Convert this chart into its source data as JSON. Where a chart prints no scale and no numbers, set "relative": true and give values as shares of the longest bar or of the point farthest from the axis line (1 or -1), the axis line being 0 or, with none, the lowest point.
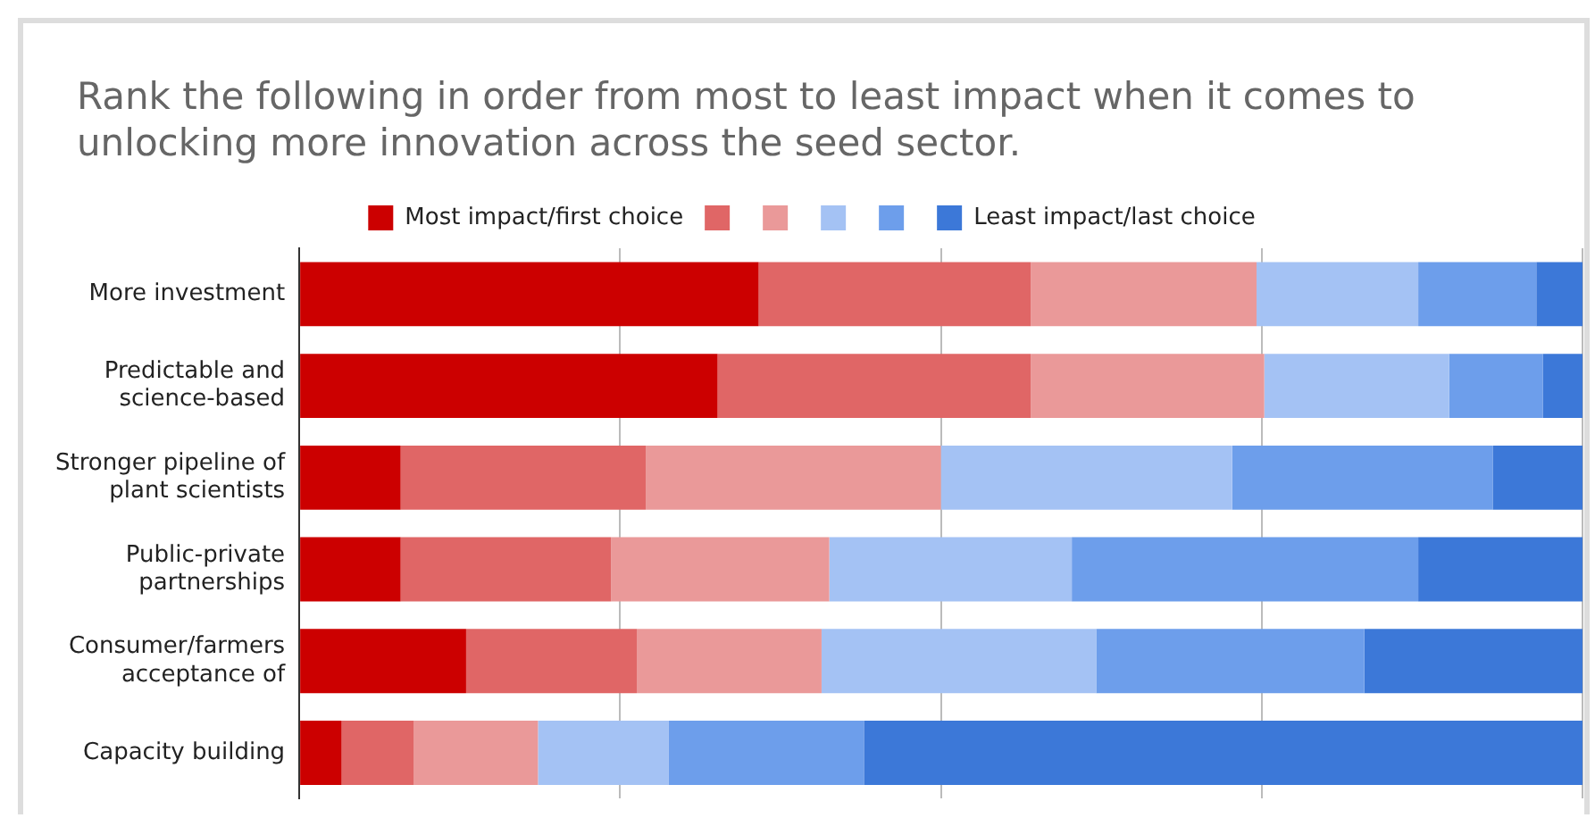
{
  "chart_data": {
    "type": "bar",
    "orientation": "horizontal",
    "stacked": true,
    "relative": true,
    "grid": "x",
    "legend": "top",
    "title": "Rank the following in order from most to least impact when it comes to unlocking more innovation across the seed sector.",
    "categories": [
      "More investment",
      "Predictable and science-based",
      "Stronger pipeline of plant scientists",
      "Public-private partnerships",
      "Consumer/farmers acceptance of",
      "Capacity building"
    ],
    "series": [
      {
        "name": "Most impact/first choice",
        "color": "#cc0000",
        "values": [
          0.358,
          0.326,
          0.079,
          0.079,
          0.13,
          0.033
        ]
      },
      {
        "color": "#e06666",
        "values": [
          0.212,
          0.244,
          0.191,
          0.164,
          0.133,
          0.056
        ]
      },
      {
        "color": "#ea9999",
        "values": [
          0.176,
          0.182,
          0.23,
          0.17,
          0.144,
          0.097
        ]
      },
      {
        "color": "#a4c2f4",
        "values": [
          0.126,
          0.144,
          0.227,
          0.189,
          0.214,
          0.102
        ]
      },
      {
        "color": "#6d9eeb",
        "values": [
          0.092,
          0.073,
          0.203,
          0.27,
          0.209,
          0.152
        ]
      },
      {
        "name": "Least impact/last choice",
        "color": "#3c78d8",
        "values": [
          0.036,
          0.031,
          0.07,
          0.128,
          0.17,
          0.56
        ]
      }
    ]
  }
}
